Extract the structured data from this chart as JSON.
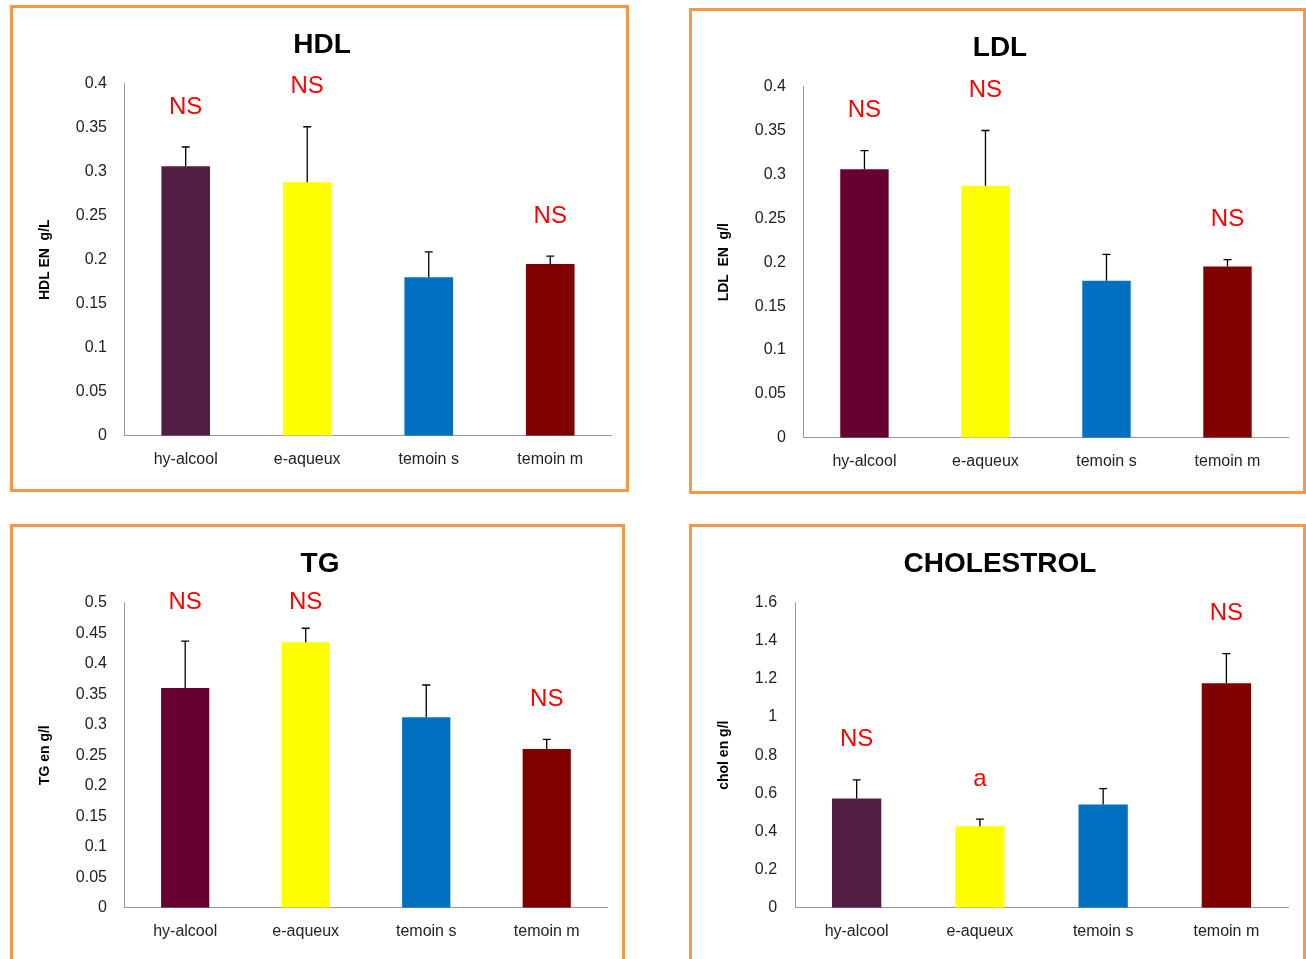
{
  "chart_data": [
    {
      "type": "bar",
      "title": "HDL",
      "ylabel": "HDL EN  g/L",
      "categories": [
        "hy-alcool",
        "e-aqueux",
        "temoin s",
        "temoin m"
      ],
      "colors": [
        "#521e44",
        "#ffff00",
        "#0070c0",
        "#800000"
      ],
      "values": [
        0.306,
        0.288,
        0.18,
        0.195
      ],
      "errors": [
        [
          0.306,
          0.328
        ],
        [
          0.288,
          0.351
        ],
        [
          0.18,
          0.209
        ],
        [
          0.195,
          0.204
        ]
      ],
      "ylim": [
        0,
        0.4
      ],
      "yticks": [
        0,
        0.05,
        0.1,
        0.15,
        0.2,
        0.25,
        0.3,
        0.35,
        0.4
      ],
      "grid": false,
      "legend": false,
      "annotations": [
        {
          "text": "NS",
          "x": "hy-alcool",
          "y": 0.328
        },
        {
          "text": "NS",
          "x": "e-aqueux",
          "y": 0.351
        },
        {
          "text": "NS",
          "x": "temoin m",
          "y": 0.204
        }
      ]
    },
    {
      "type": "bar",
      "title": "LDL",
      "ylabel": "LDL  EN  g/l",
      "categories": [
        "hy-alcool",
        "e-aqueux",
        "temoin s",
        "temoin m"
      ],
      "colors": [
        "#660033",
        "#ffff00",
        "#0070c0",
        "#800000"
      ],
      "values": [
        0.306,
        0.287,
        0.179,
        0.195
      ],
      "errors": [
        [
          0.306,
          0.327
        ],
        [
          0.287,
          0.35
        ],
        [
          0.179,
          0.209
        ],
        [
          0.195,
          0.203
        ]
      ],
      "ylim": [
        0,
        0.4
      ],
      "yticks": [
        0,
        0.05,
        0.1,
        0.15,
        0.2,
        0.25,
        0.3,
        0.35,
        0.4
      ],
      "grid": false,
      "legend": false,
      "annotations": [
        {
          "text": "NS",
          "x": "hy-alcool",
          "y": 0.327
        },
        {
          "text": "NS",
          "x": "e-aqueux",
          "y": 0.35
        },
        {
          "text": "NS",
          "x": "temoin m",
          "y": 0.203
        }
      ]
    },
    {
      "type": "bar",
      "title": "TG",
      "ylabel": "TG en g/l",
      "categories": [
        "hy-alcool",
        "e-aqueux",
        "temoin s",
        "temoin m"
      ],
      "colors": [
        "#660033",
        "#ffff00",
        "#0070c0",
        "#800000"
      ],
      "values": [
        0.36,
        0.435,
        0.312,
        0.26
      ],
      "errors": [
        [
          0.36,
          0.437
        ],
        [
          0.435,
          0.458
        ],
        [
          0.312,
          0.365
        ],
        [
          0.26,
          0.276
        ]
      ],
      "ylim": [
        0,
        0.5
      ],
      "yticks": [
        0,
        0.05,
        0.1,
        0.15,
        0.2,
        0.25,
        0.3,
        0.35,
        0.4,
        0.45,
        0.5
      ],
      "grid": false,
      "legend": false,
      "annotations": [
        {
          "text": "NS",
          "x": "hy-alcool",
          "y": 0.437
        },
        {
          "text": "NS",
          "x": "e-aqueux",
          "y": 0.458
        },
        {
          "text": "NS",
          "x": "temoin m",
          "y": 0.276
        }
      ]
    },
    {
      "type": "bar",
      "title": "CHOLESTROL",
      "ylabel": "chol en g/l",
      "categories": [
        "hy-alcool",
        "e-aqueux",
        "temoin s",
        "temoin m"
      ],
      "colors": [
        "#521e44",
        "#ffff00",
        "#0070c0",
        "#800000"
      ],
      "values": [
        0.573,
        0.428,
        0.542,
        1.177
      ],
      "errors": [
        [
          0.573,
          0.671
        ],
        [
          0.428,
          0.465
        ],
        [
          0.542,
          0.625
        ],
        [
          1.177,
          1.332
        ]
      ],
      "ylim": [
        0,
        1.6
      ],
      "yticks": [
        0,
        0.2,
        0.4,
        0.6,
        0.8,
        1,
        1.2,
        1.4,
        1.6
      ],
      "grid": false,
      "legend": false,
      "annotations": [
        {
          "text": "NS",
          "x": "hy-alcool",
          "y": 0.671
        },
        {
          "text": "a",
          "x": "e-aqueux",
          "y": 0.465
        },
        {
          "text": "NS",
          "x": "temoin m",
          "y": 1.332
        }
      ]
    }
  ]
}
